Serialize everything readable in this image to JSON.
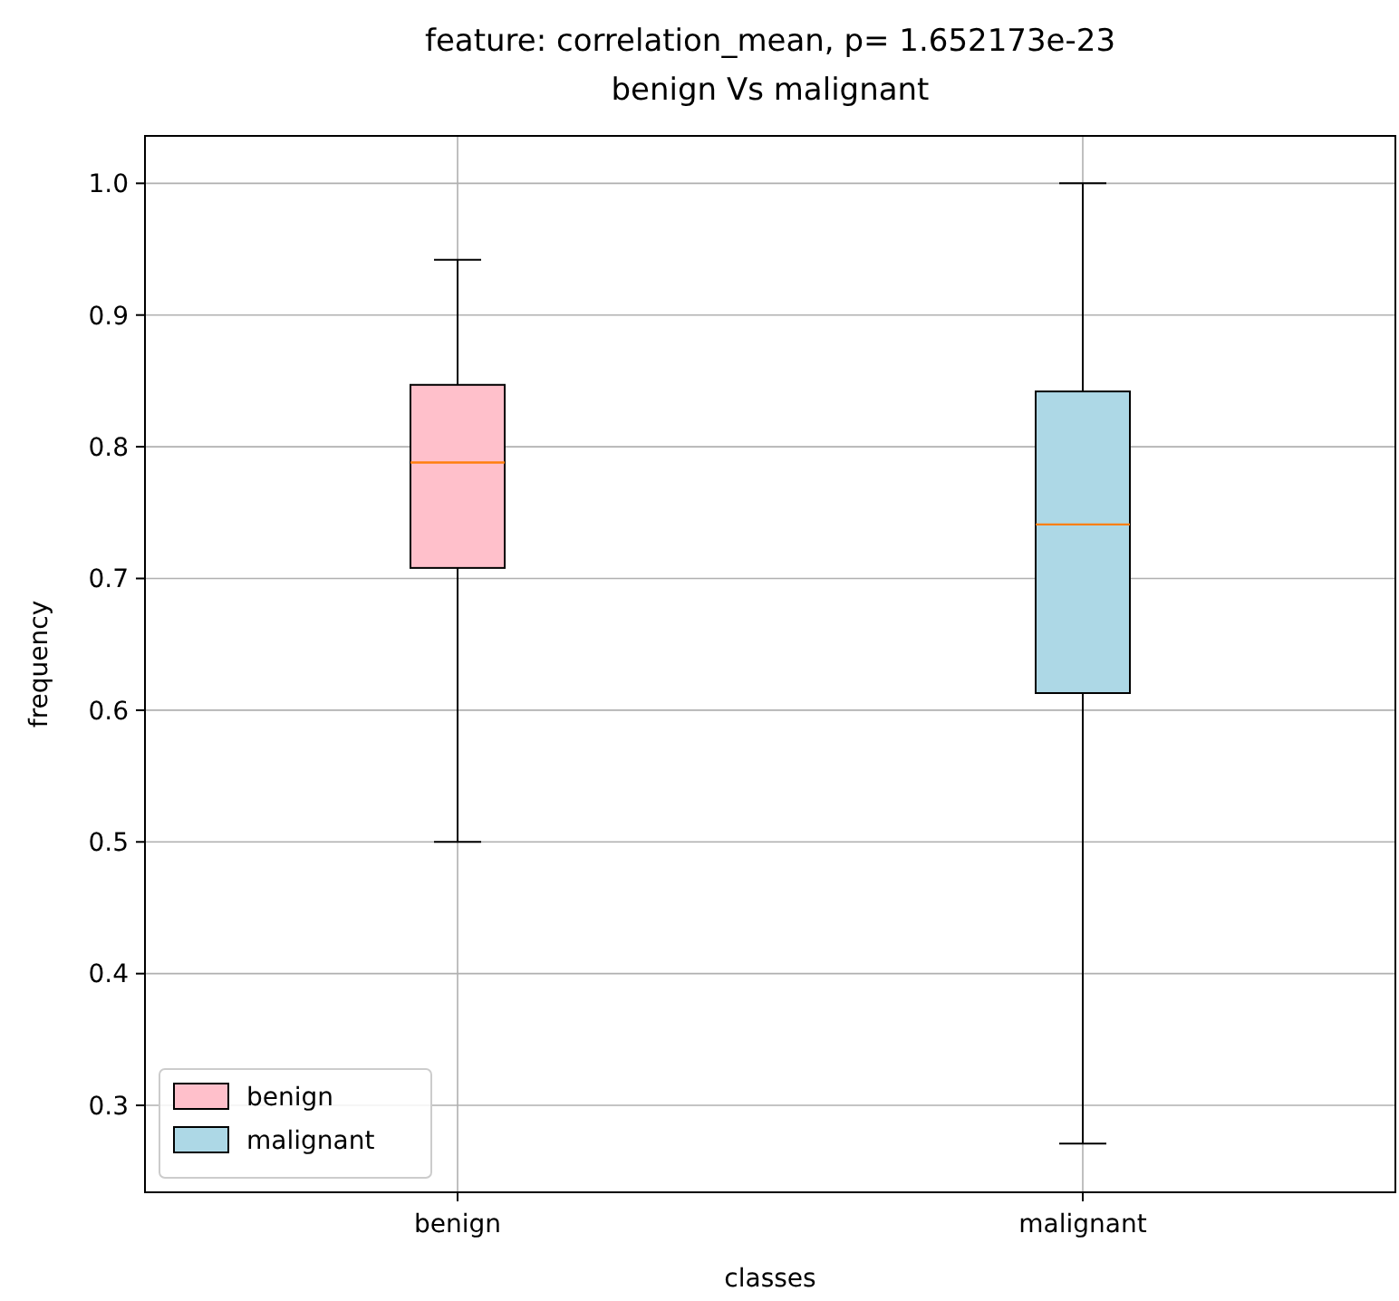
{
  "chart_data": {
    "type": "box",
    "title": "feature: correlation_mean, p= 1.652173e-23",
    "subtitle": "benign Vs malignant",
    "xlabel": "classes",
    "ylabel": "frequency",
    "categories": [
      "benign",
      "malignant"
    ],
    "series": [
      {
        "name": "benign",
        "color": "#ffc0cb",
        "boxes": [
          {
            "low": 0.5,
            "q1": 0.708,
            "median": 0.788,
            "q3": 0.847,
            "high": 0.942
          },
          null
        ]
      },
      {
        "name": "malignant",
        "color": "#add8e6",
        "boxes": [
          null,
          {
            "low": 0.271,
            "q1": 0.613,
            "median": 0.741,
            "q3": 0.842,
            "high": 1.0
          }
        ]
      }
    ],
    "ylim": [
      0.234,
      1.036
    ],
    "yticks": [
      {
        "value": 0.3,
        "label": "0.3"
      },
      {
        "value": 0.4,
        "label": "0.4"
      },
      {
        "value": 0.5,
        "label": "0.5"
      },
      {
        "value": 0.6,
        "label": "0.6"
      },
      {
        "value": 0.7,
        "label": "0.7"
      },
      {
        "value": 0.8,
        "label": "0.8"
      },
      {
        "value": 0.9,
        "label": "0.9"
      },
      {
        "value": 1.0,
        "label": "1.0"
      }
    ],
    "grid": true,
    "legend": "bottom left"
  }
}
